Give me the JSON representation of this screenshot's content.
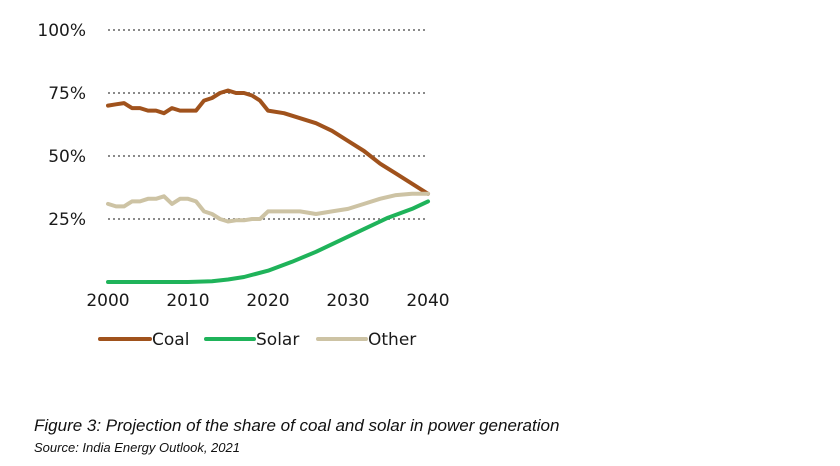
{
  "caption": "Figure 3: Projection of the share of coal and solar in power generation",
  "source": "Source: India Energy Outlook, 2021",
  "chart_data": {
    "type": "line",
    "title": "",
    "xlabel": "",
    "ylabel": "",
    "xlim": [
      2000,
      2040
    ],
    "ylim": [
      0,
      100
    ],
    "grid": "horizontal dotted",
    "legend": "bottom",
    "x_ticks": [
      {
        "value": 2000,
        "label": "2000"
      },
      {
        "value": 2010,
        "label": "2010"
      },
      {
        "value": 2020,
        "label": "2020"
      },
      {
        "value": 2030,
        "label": "2030"
      },
      {
        "value": 2040,
        "label": "2040"
      }
    ],
    "y_ticks": [
      {
        "value": 25,
        "label": "25%"
      },
      {
        "value": 50,
        "label": "50%"
      },
      {
        "value": 75,
        "label": "75%"
      },
      {
        "value": 100,
        "label": "100%"
      }
    ],
    "series": [
      {
        "name": "Coal",
        "color": "#a0521c",
        "x": [
          2000,
          2001,
          2002,
          2003,
          2004,
          2005,
          2006,
          2007,
          2008,
          2009,
          2010,
          2011,
          2012,
          2013,
          2014,
          2015,
          2016,
          2017,
          2018,
          2019,
          2020,
          2022,
          2024,
          2026,
          2028,
          2030,
          2032,
          2034,
          2036,
          2038,
          2040
        ],
        "y": [
          70,
          70.5,
          71,
          69,
          69,
          68,
          68,
          67,
          69,
          68,
          68,
          68,
          72,
          73,
          75,
          76,
          75,
          75,
          74,
          72,
          68,
          67,
          65,
          63,
          60,
          56,
          52,
          47,
          43,
          39,
          35
        ]
      },
      {
        "name": "Solar",
        "color": "#1fb35a",
        "x": [
          2000,
          2005,
          2010,
          2013,
          2015,
          2017,
          2020,
          2023,
          2026,
          2029,
          2032,
          2035,
          2038,
          2040
        ],
        "y": [
          0,
          0,
          0,
          0.3,
          1,
          2,
          4.5,
          8,
          12,
          16.5,
          21,
          25.5,
          29,
          32
        ]
      },
      {
        "name": "Other",
        "color": "#cdc3a4",
        "x": [
          2000,
          2001,
          2002,
          2003,
          2004,
          2005,
          2006,
          2007,
          2008,
          2009,
          2010,
          2011,
          2012,
          2013,
          2014,
          2015,
          2016,
          2017,
          2018,
          2019,
          2020,
          2022,
          2024,
          2026,
          2028,
          2030,
          2032,
          2034,
          2036,
          2038,
          2040
        ],
        "y": [
          31,
          30,
          30,
          32,
          32,
          33,
          33,
          34,
          31,
          33,
          33,
          32,
          28,
          27,
          25,
          24,
          24.5,
          24.5,
          25,
          25,
          28,
          28,
          28,
          27,
          28,
          29,
          31,
          33,
          34.5,
          35,
          35
        ]
      }
    ]
  }
}
